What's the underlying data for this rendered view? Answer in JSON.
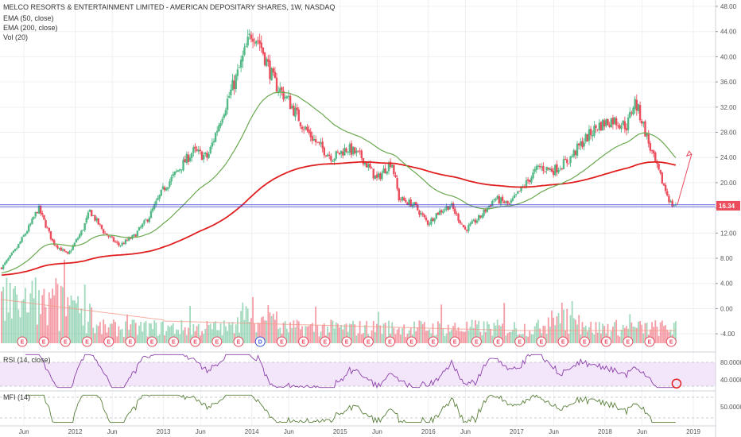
{
  "chart_data": {
    "type": "candlestick",
    "title": "MELCO RESORTS & ENTERTAINMENT LIMITED - AMERICAN DEPOSITARY SHARES, 1W, NASDAQ",
    "legend": [
      "EMA (50, close)",
      "EMA (200, close)",
      "Vol (20)"
    ],
    "price_axis": {
      "ticks": [
        "48.00",
        "44.00",
        "40.00",
        "36.00",
        "32.00",
        "28.00",
        "24.00",
        "20.00",
        "16.00",
        "12.00",
        "8.00",
        "4.00",
        "0.00",
        "-4.00"
      ],
      "ylim": [
        -6,
        48
      ]
    },
    "last_price_label": "16.34",
    "support_level": 16.34,
    "price_path": [
      [
        "2011-03",
        6.5
      ],
      [
        "2011-05",
        9.5
      ],
      [
        "2011-07",
        13.5
      ],
      [
        "2011-08",
        16.0
      ],
      [
        "2011-10",
        10.5
      ],
      [
        "2011-12",
        8.5
      ],
      [
        "2012-02",
        12.5
      ],
      [
        "2012-03",
        15.5
      ],
      [
        "2012-05",
        12.0
      ],
      [
        "2012-07",
        10.0
      ],
      [
        "2012-09",
        11.5
      ],
      [
        "2012-11",
        14.5
      ],
      [
        "2013-01",
        19.0
      ],
      [
        "2013-03",
        22.0
      ],
      [
        "2013-05",
        25.0
      ],
      [
        "2013-07",
        24.0
      ],
      [
        "2013-09",
        31.0
      ],
      [
        "2013-11",
        37.0
      ],
      [
        "2014-01",
        44.0
      ],
      [
        "2014-02",
        42.5
      ],
      [
        "2014-04",
        36.0
      ],
      [
        "2014-06",
        33.0
      ],
      [
        "2014-08",
        29.0
      ],
      [
        "2014-10",
        26.0
      ],
      [
        "2014-12",
        24.0
      ],
      [
        "2015-02",
        25.5
      ],
      [
        "2015-04",
        24.0
      ],
      [
        "2015-06",
        20.5
      ],
      [
        "2015-08",
        23.5
      ],
      [
        "2015-09",
        17.5
      ],
      [
        "2015-11",
        16.5
      ],
      [
        "2016-01",
        13.5
      ],
      [
        "2016-02",
        15.0
      ],
      [
        "2016-04",
        16.5
      ],
      [
        "2016-06",
        12.5
      ],
      [
        "2016-08",
        14.5
      ],
      [
        "2016-10",
        17.5
      ],
      [
        "2016-12",
        16.5
      ],
      [
        "2017-02",
        19.5
      ],
      [
        "2017-04",
        22.5
      ],
      [
        "2017-06",
        22.0
      ],
      [
        "2017-08",
        23.5
      ],
      [
        "2017-10",
        26.5
      ],
      [
        "2017-12",
        29.0
      ],
      [
        "2018-02",
        30.0
      ],
      [
        "2018-04",
        29.0
      ],
      [
        "2018-05",
        33.0
      ],
      [
        "2018-06",
        30.0
      ],
      [
        "2018-07",
        26.0
      ],
      [
        "2018-08",
        22.5
      ],
      [
        "2018-09",
        19.5
      ],
      [
        "2018-10",
        16.5
      ]
    ],
    "rsi": {
      "name": "RSI (14, close)",
      "ticks": [
        "80.0000",
        "40.0000"
      ]
    },
    "mfi": {
      "name": "MFI (14)",
      "ticks": [
        "50.0000"
      ]
    },
    "time_axis": [
      "Jun",
      "2012",
      "Jun",
      "2013",
      "Jun",
      "2014",
      "Jun",
      "2015",
      "Jun",
      "2016",
      "Jun",
      "2017",
      "Jun",
      "2018",
      "Jun",
      "2019"
    ],
    "earnings_markers": [
      "E",
      "E",
      "E",
      "E",
      "E",
      "E",
      "E",
      "E",
      "E",
      "E",
      "E",
      "D",
      "E",
      "E",
      "E",
      "E",
      "E",
      "E",
      "E",
      "E",
      "E",
      "E",
      "E",
      "E",
      "E",
      "E",
      "E",
      "E",
      "E",
      "E",
      "E"
    ]
  },
  "colors": {
    "up": "#53b987",
    "down": "#eb4d5c",
    "ema50": "#6aa84f",
    "ema200": "#e02020",
    "support_line": "#3a3ad0",
    "last_price_bg": "#eb4d5c",
    "rsi_bg": "#f3e6fb",
    "rsi_line": "#8a3fa8",
    "mfi_line": "#5a7f3a"
  }
}
